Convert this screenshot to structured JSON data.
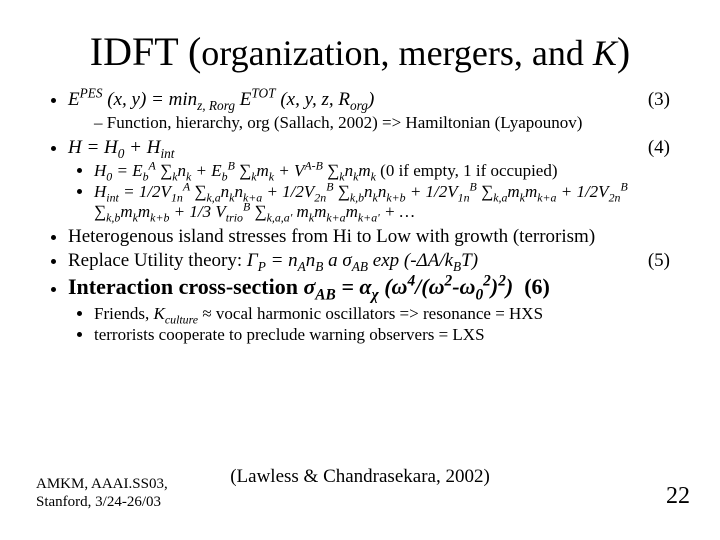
{
  "title_html": "<span class='big'>IDFT (</span>organization, mergers, and <span class='ital'>K</span><span class='big'>)</span>",
  "b1_html": "<span class='ital'>E<sup>PES</sup> (x, y) = min<sub>z, Rorg</sub> E<sup>TOT</sup> (x, y, z, R<sub>org</sub>)</span><span class='eqnum'>(3)</span>",
  "b1a_html": "Function, hierarchy, org (Sallach, 2002) =&gt; Hamiltonian (Lyapounov)",
  "b2_html": "<span class='ital'>H = H<sub>0</sub> + H<sub>int</sub></span><span class='eqnum'>(4)</span>",
  "b2a_html": "<span class='ital'>H<sub>0</sub> = E<sub>b</sub><sup>A</sup> ∑<sub>k</sub>n<sub>k</sub> + E<sub>b</sub><sup>B</sup> ∑<sub>k</sub>m<sub>k</sub> + V<sup>A-B</sup> ∑<sub>k</sub>n<sub>k</sub>m<sub>k</sub></span> (0 if empty, 1 if occupied)",
  "b2b_html": "<span class='ital'>H<sub>int</sub> = 1/2V<sub>1n</sub><sup>A</sup> ∑<sub>k,a</sub>n<sub>k</sub>n<sub>k+a</sub> + 1/2V<sub>2n</sub><sup>B</sup> ∑<sub>k,b</sub>n<sub>k</sub>n<sub>k+b</sub> + 1/2V<sub>1n</sub><sup>B</sup> ∑<sub>k,a</sub>m<sub>k</sub>m<sub>k+a</sub> + 1/2V<sub>2n</sub><sup>B</sup> ∑<sub>k,b</sub>m<sub>k</sub>m<sub>k+b</sub> + 1/3 V<sub>trio</sub><sup>B</sup> ∑<sub>k,a,a'</sub> m<sub>k</sub>m<sub>k+a</sub>m<sub>k+a'</sub> + …</span>",
  "b3_html": "Heterogenous island stresses from Hi to Low with growth (terrorism)",
  "b4_html": "Replace Utility theory: <span class='ital'>Γ<sub>P</sub> = n<sub>A</sub>n<sub>B</sub> a σ<sub>AB</sub> exp (-ΔA/k<sub>B</sub>T)</span><span class='eqnum'>(5)</span>",
  "b5_html": "<span class='interaction bold'>Interaction cross-section <span class='ital'>σ<sub>AB</sub> = α<sub>χ</sub> (ω<sup>4</sup>/(ω<sup>2</sup>-ω<sub>0</sub><sup>2</sup>)<sup>2</sup>)</span>&nbsp;&nbsp;(6)</span>",
  "b5a_html": "Friends, <span class='ital'>K<sub>culture</sub></span> ≈ vocal harmonic oscillators =&gt; resonance = HXS",
  "b5b_html": "terrorists cooperate to preclude warning observers = LXS",
  "footer_center": "(Lawless & Chandrasekara, 2002)",
  "footer_left_l1": "AMKM, AAAI.SS03,",
  "footer_left_l2": "Stanford, 3/24-26/03",
  "page_num": "22",
  "colors": {
    "bg": "#ffffff",
    "text": "#000000"
  },
  "font_family": "Times New Roman"
}
